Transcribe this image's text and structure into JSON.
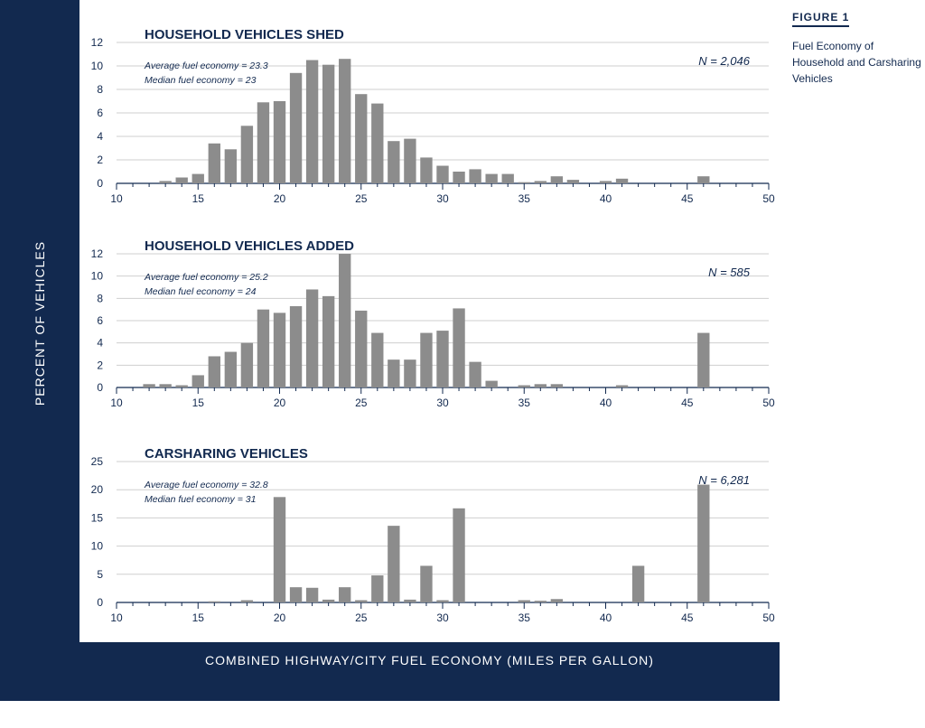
{
  "figure_label": "FIGURE 1",
  "figure_title": "Fuel Economy of Household and Carsharing Vehicles",
  "y_axis_label": "PERCENT OF VEHICLES",
  "x_axis_label": "COMBINED HIGHWAY/CITY FUEL ECONOMY (MILES PER GALLON)",
  "colors": {
    "frame": "#12294f",
    "bar": "#8c8c8c",
    "text": "#12294f"
  },
  "chart_data": [
    {
      "type": "bar",
      "title": "HOUSEHOLD VEHICLES SHED",
      "n_label": "N = 2,046",
      "stats": [
        "Average fuel economy = 23.3",
        "Median fuel economy = 23"
      ],
      "xlim": [
        10,
        50
      ],
      "xticks": [
        10,
        15,
        20,
        25,
        30,
        35,
        40,
        45,
        50
      ],
      "ylim": [
        0,
        12
      ],
      "yticks": [
        0,
        2,
        4,
        6,
        8,
        10,
        12
      ],
      "x": [
        13,
        14,
        15,
        16,
        17,
        18,
        19,
        20,
        21,
        22,
        23,
        24,
        25,
        26,
        27,
        28,
        29,
        30,
        31,
        32,
        33,
        34,
        35,
        36,
        37,
        38,
        40,
        41,
        46
      ],
      "values": [
        0.2,
        0.5,
        0.8,
        3.4,
        2.9,
        4.9,
        6.9,
        7.0,
        9.4,
        10.5,
        10.1,
        10.6,
        7.6,
        6.8,
        3.6,
        3.8,
        2.2,
        1.5,
        1.0,
        1.2,
        0.8,
        0.8,
        0.1,
        0.2,
        0.6,
        0.3,
        0.2,
        0.4,
        0.6
      ]
    },
    {
      "type": "bar",
      "title": "HOUSEHOLD VEHICLES ADDED",
      "n_label": "N = 585",
      "stats": [
        "Average fuel economy = 25.2",
        "Median fuel economy = 24"
      ],
      "xlim": [
        10,
        50
      ],
      "xticks": [
        10,
        15,
        20,
        25,
        30,
        35,
        40,
        45,
        50
      ],
      "ylim": [
        0,
        12
      ],
      "yticks": [
        0,
        2,
        4,
        6,
        8,
        10,
        12
      ],
      "x": [
        12,
        13,
        14,
        15,
        16,
        17,
        18,
        19,
        20,
        21,
        22,
        23,
        24,
        25,
        26,
        27,
        28,
        29,
        30,
        31,
        32,
        33,
        35,
        36,
        37,
        41,
        46
      ],
      "values": [
        0.3,
        0.3,
        0.2,
        1.1,
        2.8,
        3.2,
        4.0,
        7.0,
        6.7,
        7.3,
        8.8,
        8.2,
        12.0,
        6.9,
        4.9,
        2.5,
        2.5,
        4.9,
        5.1,
        7.1,
        2.3,
        0.6,
        0.2,
        0.3,
        0.3,
        0.2,
        4.9
      ]
    },
    {
      "type": "bar",
      "title": "CARSHARING VEHICLES",
      "n_label": "N = 6,281",
      "stats": [
        "Average fuel economy = 32.8",
        "Median fuel economy = 31"
      ],
      "xlim": [
        10,
        50
      ],
      "xticks": [
        10,
        15,
        20,
        25,
        30,
        35,
        40,
        45,
        50
      ],
      "ylim": [
        0,
        25
      ],
      "yticks": [
        0,
        5,
        10,
        15,
        20,
        25
      ],
      "x": [
        16,
        18,
        20,
        21,
        22,
        23,
        24,
        25,
        26,
        27,
        28,
        29,
        30,
        31,
        35,
        36,
        37,
        42,
        46
      ],
      "values": [
        0.2,
        0.4,
        18.7,
        2.7,
        2.6,
        0.5,
        2.7,
        0.4,
        4.8,
        13.6,
        0.5,
        6.5,
        0.4,
        16.7,
        0.4,
        0.3,
        0.6,
        6.5,
        20.9
      ]
    }
  ]
}
